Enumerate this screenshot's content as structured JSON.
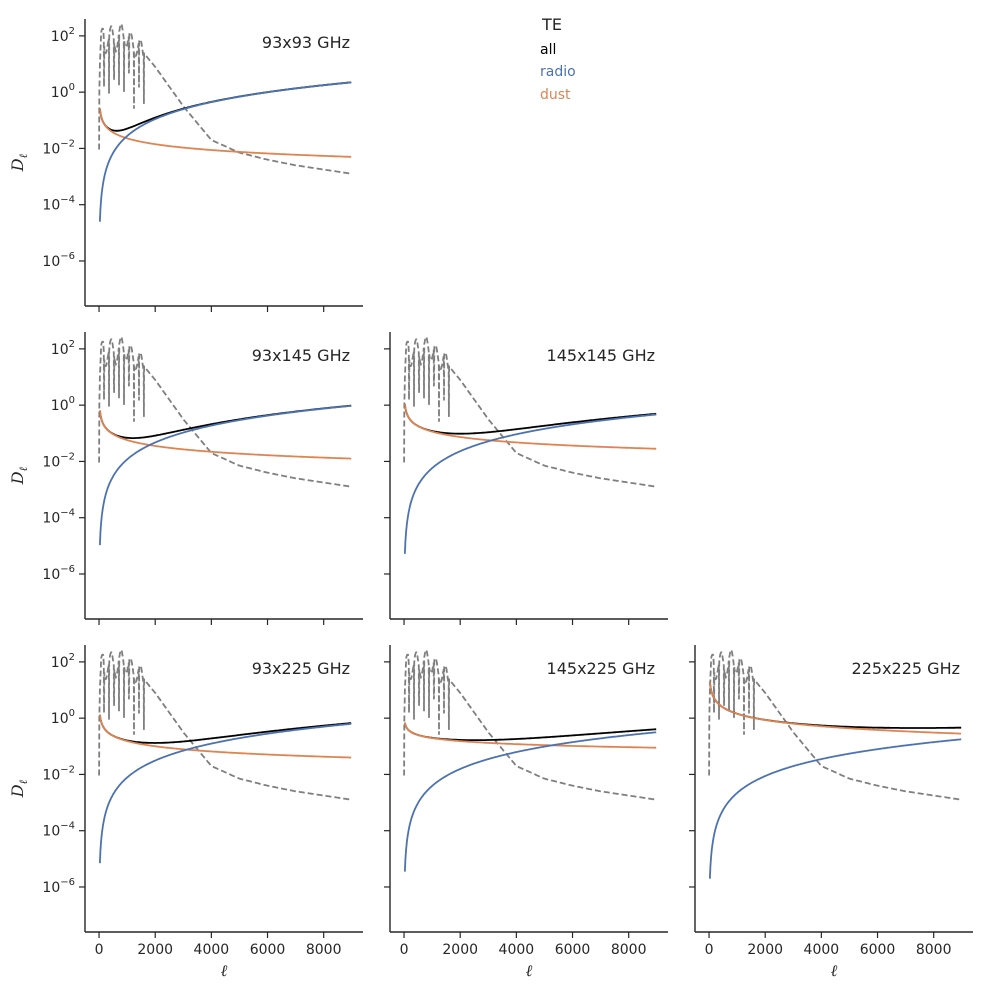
{
  "chart_data": {
    "type": "line",
    "layout": "lower-triangular grid",
    "yscale": "log",
    "xlim": [
      -500,
      9400
    ],
    "ylim_log10": [
      -7.6,
      2.6
    ],
    "xticks": [
      0,
      2000,
      4000,
      6000,
      8000
    ],
    "xtick_labels": [
      "0",
      "2000",
      "4000",
      "6000",
      "8000"
    ],
    "yticks_log10": [
      -6,
      -4,
      -2,
      0,
      2
    ],
    "ytick_labels": [
      "10^-6",
      "10^-4",
      "10^-2",
      "10^0",
      "10^2"
    ],
    "xlabel": "ℓ",
    "ylabel": "D",
    "ylabel_sub": "ℓ",
    "grid": false,
    "legend": {
      "title": "TE",
      "placement": "top-center",
      "entries": [
        {
          "label": "all",
          "color": "#000000"
        },
        {
          "label": "radio",
          "color": "#4c72b0"
        },
        {
          "label": "dust",
          "color": "#dd8452"
        }
      ]
    },
    "colors": {
      "all": "#000000",
      "radio": "#4c72b0",
      "dust": "#dd8452",
      "cmb": "#7f7f7f"
    },
    "series_notes": "Each panel shows CMB TE reference (gray dashed, |D_l|), total 'all' (black), 'radio' (blue, rises ~ l^2), and 'dust' (orange, slowly falling) foreground power.",
    "cmb_te_log10": {
      "ell": [
        2,
        30,
        80,
        150,
        200,
        300,
        450,
        600,
        800,
        1000,
        1200,
        1500,
        2000,
        2500,
        3000,
        3500,
        4000,
        5000,
        6000,
        7000,
        8000,
        9000
      ],
      "log10_Dl": [
        -0.5,
        0.8,
        1.8,
        2.1,
        1.6,
        1.9,
        2.0,
        1.8,
        2.1,
        1.9,
        1.7,
        1.5,
        0.9,
        0.2,
        -0.5,
        -1.1,
        -1.7,
        -2.15,
        -2.4,
        -2.6,
        -2.75,
        -2.9
      ]
    },
    "panels": [
      {
        "title": "93x93 GHz",
        "row": 0,
        "col": 0,
        "radio_log10_at_9000": 0.35,
        "dust_log10_at_100": -0.95,
        "dust_log10_at_9000": -2.3
      },
      {
        "title": "93x145 GHz",
        "row": 1,
        "col": 0,
        "radio_log10_at_9000": -0.02,
        "dust_log10_at_100": -0.55,
        "dust_log10_at_9000": -1.9
      },
      {
        "title": "145x145 GHz",
        "row": 1,
        "col": 1,
        "radio_log10_at_9000": -0.33,
        "dust_log10_at_100": -0.3,
        "dust_log10_at_9000": -1.55
      },
      {
        "title": "93x225 GHz",
        "row": 2,
        "col": 0,
        "radio_log10_at_9000": -0.2,
        "dust_log10_at_100": -0.2,
        "dust_log10_at_9000": -1.4
      },
      {
        "title": "145x225 GHz",
        "row": 2,
        "col": 1,
        "radio_log10_at_9000": -0.5,
        "dust_log10_at_100": -0.35,
        "dust_log10_at_9000": -1.05
      },
      {
        "title": "225x225 GHz",
        "row": 2,
        "col": 2,
        "radio_log10_at_9000": -0.75,
        "dust_log10_at_100": 0.9,
        "dust_log10_at_9000": -0.55
      }
    ]
  }
}
